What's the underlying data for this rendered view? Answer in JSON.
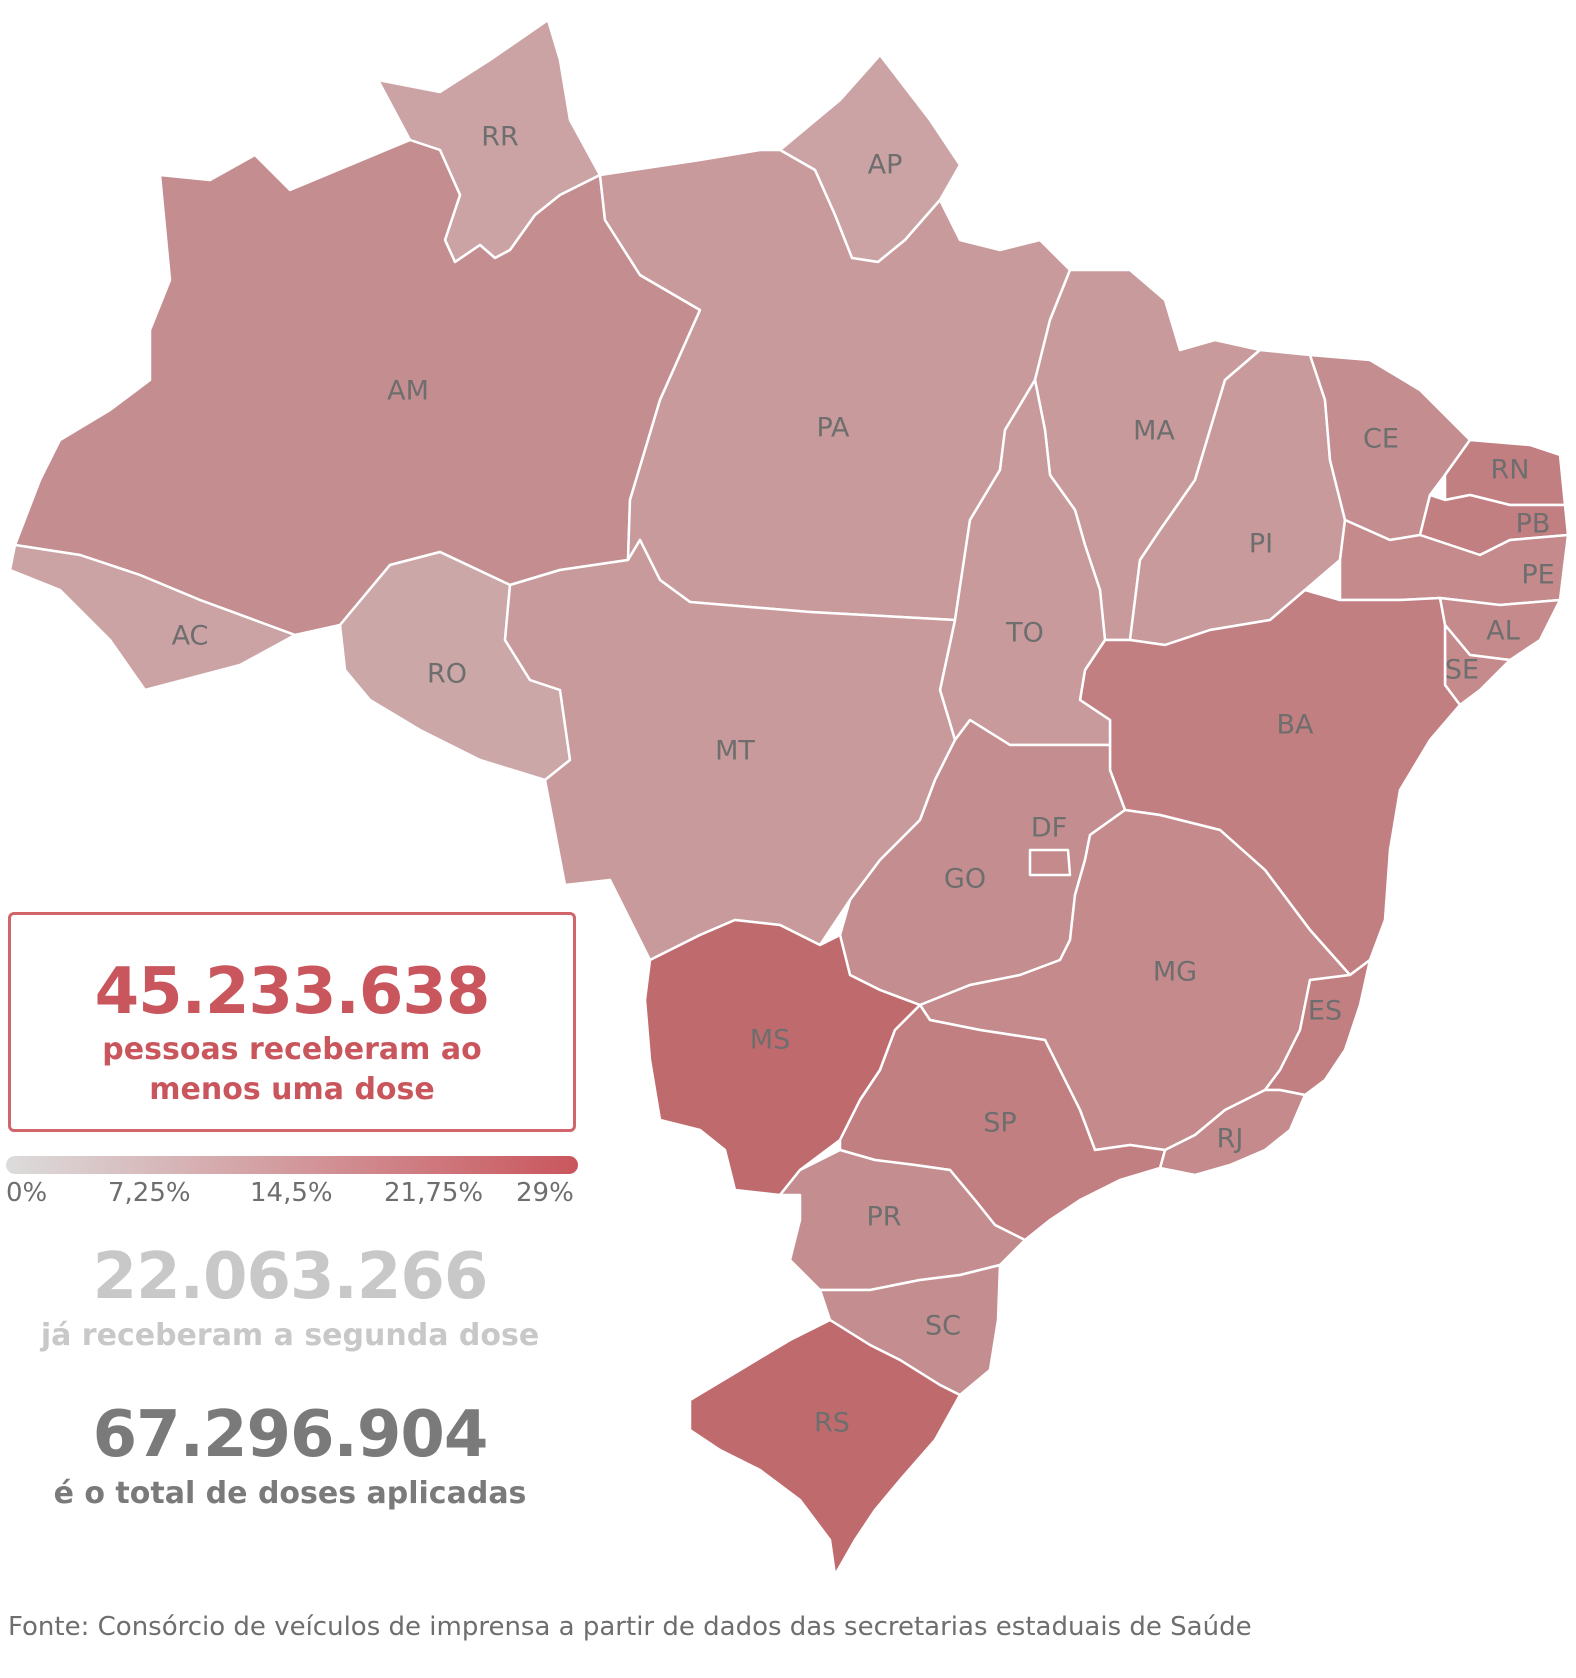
{
  "map": {
    "states": [
      {
        "code": "RR",
        "label": "RR",
        "color": "#cba3a5"
      },
      {
        "code": "AP",
        "label": "AP",
        "color": "#cba3a5"
      },
      {
        "code": "AM",
        "label": "AM",
        "color": "#c48e90"
      },
      {
        "code": "PA",
        "label": "PA",
        "color": "#c99a9c"
      },
      {
        "code": "MA",
        "label": "MA",
        "color": "#c99a9c"
      },
      {
        "code": "CE",
        "label": "CE",
        "color": "#c48e90"
      },
      {
        "code": "RN",
        "label": "RN",
        "color": "#c27f82"
      },
      {
        "code": "PB",
        "label": "PB",
        "color": "#c27f82"
      },
      {
        "code": "PE",
        "label": "PE",
        "color": "#c48a8c"
      },
      {
        "code": "AL",
        "label": "AL",
        "color": "#c48a8c"
      },
      {
        "code": "SE",
        "label": "SE",
        "color": "#c48a8c"
      },
      {
        "code": "PI",
        "label": "PI",
        "color": "#c99a9c"
      },
      {
        "code": "AC",
        "label": "AC",
        "color": "#cba3a5"
      },
      {
        "code": "RO",
        "label": "RO",
        "color": "#cba7a8"
      },
      {
        "code": "TO",
        "label": "TO",
        "color": "#c99a9c"
      },
      {
        "code": "BA",
        "label": "BA",
        "color": "#c27f82"
      },
      {
        "code": "MT",
        "label": "MT",
        "color": "#c99a9c"
      },
      {
        "code": "GO",
        "label": "GO",
        "color": "#c48e90"
      },
      {
        "code": "DF",
        "label": "DF",
        "color": "#c48a8c"
      },
      {
        "code": "MG",
        "label": "MG",
        "color": "#c48a8c"
      },
      {
        "code": "ES",
        "label": "ES",
        "color": "#c27f82"
      },
      {
        "code": "MS",
        "label": "MS",
        "color": "#bf6b6e"
      },
      {
        "code": "SP",
        "label": "SP",
        "color": "#c27f82"
      },
      {
        "code": "RJ",
        "label": "RJ",
        "color": "#c48a8c"
      },
      {
        "code": "PR",
        "label": "PR",
        "color": "#c48e90"
      },
      {
        "code": "SC",
        "label": "SC",
        "color": "#c48e90"
      },
      {
        "code": "RS",
        "label": "RS",
        "color": "#bf6b6e"
      }
    ]
  },
  "callout": {
    "number": "45.233.638",
    "text": "pessoas receberam ao menos uma dose",
    "color": "#c9565d"
  },
  "legend": {
    "ticks": [
      "0%",
      "7,25%",
      "14,5%",
      "21,75%",
      "29%"
    ],
    "color_min": "#dcdcdc",
    "color_max": "#c9565d"
  },
  "second_dose": {
    "number": "22.063.266",
    "text": "já receberam a segunda dose"
  },
  "total": {
    "number": "67.296.904",
    "text": "é o total de doses aplicadas"
  },
  "source": "Fonte: Consórcio de veículos de imprensa a partir de dados das secretarias estaduais de Saúde"
}
